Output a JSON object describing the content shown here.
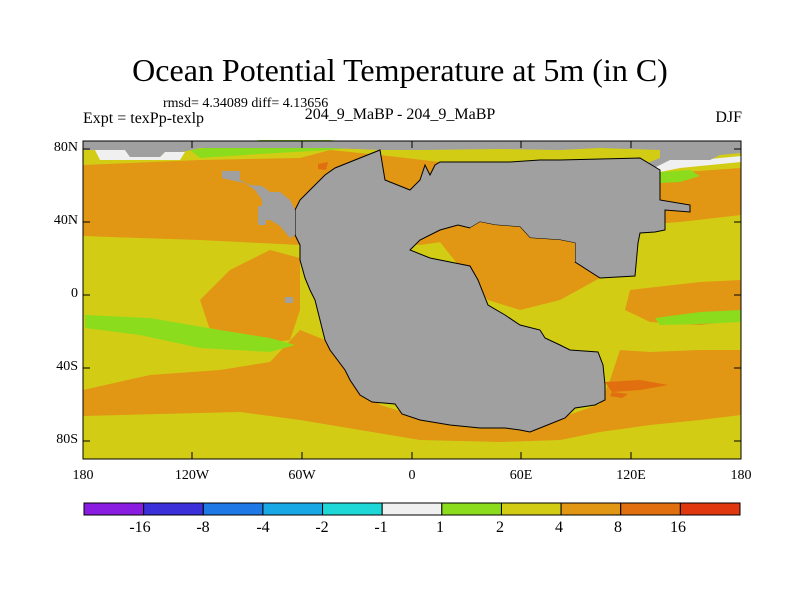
{
  "figure": {
    "title": "Ocean Potential Temperature at 5m (in C)",
    "stats": "rmsd= 4.34089 diff= 4.13656",
    "expt": "Expt = texPp-texlp",
    "case": "204_9_MaBP - 204_9_MaBP",
    "season": "DJF"
  },
  "axes": {
    "lat_ticks": [
      "80N",
      "40N",
      "0",
      "40S",
      "80S"
    ],
    "lon_ticks": [
      "180",
      "120W",
      "60W",
      "0",
      "60E",
      "120E",
      "180"
    ]
  },
  "colorbar": {
    "colors": [
      "#8a1be0",
      "#3a2fd8",
      "#1e78e6",
      "#19a8e6",
      "#1ed7d7",
      "#f0f0f0",
      "#8cdc1e",
      "#d2cd14",
      "#e19614",
      "#e16e0f",
      "#e1370f"
    ],
    "labels": [
      "-16",
      "-8",
      "-4",
      "-2",
      "-1",
      "1",
      "2",
      "4",
      "8",
      "16"
    ]
  },
  "map_colors": {
    "land": "#a0a0a0",
    "sea_ice": "#f0f0f0",
    "low": "#8cdc1e",
    "mid": "#d2cd14",
    "high": "#e19614",
    "warm": "#e16e0f"
  }
}
